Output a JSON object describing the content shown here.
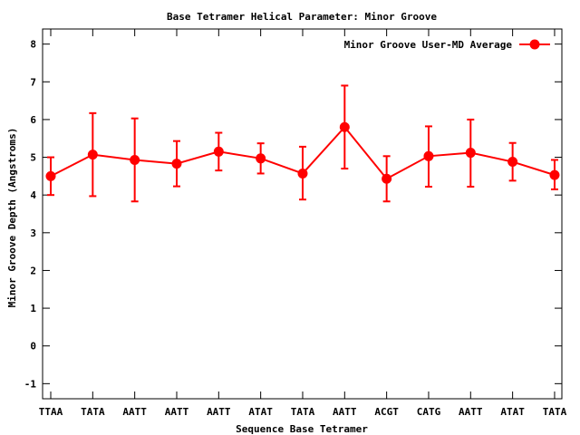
{
  "chart_data": {
    "type": "line",
    "title": "Base Tetramer Helical Parameter: Minor Groove",
    "xlabel": "Sequence Base Tetramer",
    "ylabel": "Minor Groove Depth (Angstroms)",
    "ylim": [
      -1.4,
      8.4
    ],
    "yticks": [
      -1,
      0,
      1,
      2,
      3,
      4,
      5,
      6,
      7,
      8
    ],
    "grid": false,
    "legend_position": "top-right",
    "categories": [
      "TTAA",
      "TATA",
      "AATT",
      "AATT",
      "AATT",
      "ATAT",
      "TATA",
      "AATT",
      "ACGT",
      "CATG",
      "AATT",
      "ATAT",
      "TATA"
    ],
    "series": [
      {
        "name": "Minor Groove User-MD Average",
        "color": "#ff0000",
        "values": [
          4.5,
          5.07,
          4.93,
          4.83,
          5.15,
          4.97,
          4.57,
          5.8,
          4.43,
          5.03,
          5.12,
          4.88,
          4.53
        ],
        "error_low": [
          4.0,
          3.97,
          3.83,
          4.23,
          4.65,
          4.57,
          3.88,
          4.7,
          3.83,
          4.22,
          4.22,
          4.38,
          4.15
        ],
        "error_high": [
          5.0,
          6.17,
          6.03,
          5.43,
          5.65,
          5.37,
          5.28,
          6.9,
          5.03,
          5.82,
          6.0,
          5.38,
          4.93
        ]
      }
    ]
  }
}
